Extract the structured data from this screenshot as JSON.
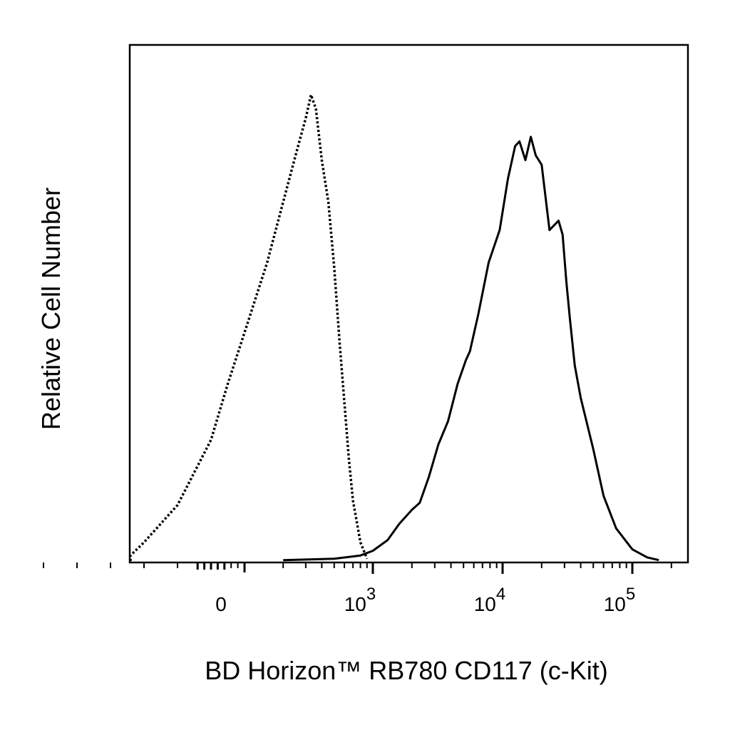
{
  "chart_data": {
    "type": "line",
    "xscale": "biexponential",
    "xlim": [
      -600,
      200000
    ],
    "ylim": [
      0,
      100
    ],
    "xlabel": "BD Horizon™ RB780 CD117 (c-Kit)",
    "ylabel": "Relative Cell Number",
    "grid": false,
    "legend": "none",
    "xticks": [
      {
        "value": 0,
        "base": "0",
        "exp": ""
      },
      {
        "value": 1000,
        "base": "10",
        "exp": "3"
      },
      {
        "value": 10000,
        "base": "10",
        "exp": "4"
      },
      {
        "value": 100000,
        "base": "10",
        "exp": "5"
      }
    ],
    "series": [
      {
        "style": "dotted",
        "color": "#000000",
        "x": [
          -600,
          -400,
          -300,
          -200,
          -100,
          0,
          50,
          100,
          150,
          200,
          250,
          300,
          330,
          360,
          400,
          450,
          500,
          550,
          600,
          650,
          700,
          800,
          900
        ],
        "y": [
          0,
          0.3,
          1.2,
          4,
          12,
          26,
          38,
          49,
          64,
          77,
          87,
          95,
          100,
          97,
          86,
          77,
          63,
          47,
          34,
          22,
          13,
          4,
          0.5
        ]
      },
      {
        "style": "solid",
        "color": "#000000",
        "x": [
          200,
          500,
          800,
          1000,
          1300,
          1600,
          2000,
          2300,
          2700,
          3200,
          3800,
          4500,
          5200,
          5600,
          6500,
          7800,
          9500,
          11000,
          12500,
          13500,
          15000,
          16500,
          18000,
          20000,
          23000,
          27000,
          29000,
          31000,
          33000,
          36000,
          40000,
          50000,
          60000,
          75000,
          100000,
          130000,
          160000
        ],
        "y": [
          0.2,
          0.5,
          1.2,
          2.2,
          4.5,
          8,
          11,
          12.5,
          18,
          25,
          30,
          38,
          43,
          45,
          53,
          64,
          71,
          82,
          89,
          90,
          86,
          91,
          87,
          85,
          71,
          73,
          70,
          60,
          52,
          42,
          35,
          24,
          14,
          7,
          2.5,
          0.8,
          0.2
        ]
      }
    ]
  }
}
